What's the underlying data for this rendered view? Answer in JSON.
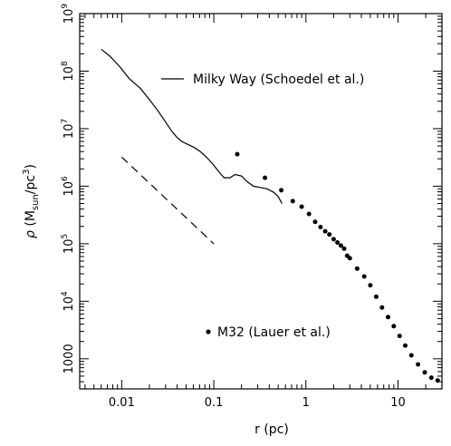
{
  "chart_data": {
    "type": "scatter",
    "xscale": "log",
    "yscale": "log",
    "xlim": [
      0.0035,
      30
    ],
    "ylim": [
      300,
      1000000000
    ],
    "xlabel": "r (pc)",
    "ylabel": {
      "rho": "ρ",
      "open": " (M",
      "sub": "sun",
      "mid": "/pc",
      "sup": "3",
      "close": ")"
    },
    "x_tick_labels": [
      "0.01",
      "0.1",
      "1",
      "10"
    ],
    "y_tick_labels": [
      {
        "value": 1000,
        "label": "1000"
      },
      {
        "value": 10000,
        "base": "10",
        "exp": "4"
      },
      {
        "value": 100000,
        "base": "10",
        "exp": "5"
      },
      {
        "value": 1000000,
        "base": "10",
        "exp": "6"
      },
      {
        "value": 10000000,
        "base": "10",
        "exp": "7"
      },
      {
        "value": 100000000,
        "base": "10",
        "exp": "8"
      },
      {
        "value": 1000000000,
        "base": "10",
        "exp": "9"
      }
    ],
    "legend_placement": "upper-right / lower-center",
    "series": [
      {
        "name": "Milky Way (Schoedel et al.)",
        "kind": "line",
        "x": [
          0.006,
          0.0075,
          0.0095,
          0.012,
          0.016,
          0.02,
          0.025,
          0.03,
          0.035,
          0.04,
          0.045,
          0.05,
          0.06,
          0.07,
          0.08,
          0.09,
          0.1,
          0.11,
          0.12,
          0.13,
          0.15,
          0.17,
          0.2,
          0.23,
          0.27,
          0.32,
          0.38,
          0.45,
          0.5,
          0.55
        ],
        "y": [
          240000000,
          180000000,
          120000000,
          75000000,
          50000000,
          32000000,
          20000000,
          13000000,
          9000000,
          7000000,
          6000000,
          5500000,
          4800000,
          4100000,
          3400000,
          2800000,
          2300000,
          1900000,
          1600000,
          1400000,
          1400000,
          1600000,
          1500000,
          1200000,
          1000000,
          950000,
          900000,
          780000,
          660000,
          500000
        ]
      },
      {
        "name": "M32 (Lauer et al.)",
        "kind": "points",
        "x": [
          0.18,
          0.36,
          0.54,
          0.72,
          0.9,
          1.08,
          1.26,
          1.44,
          1.62,
          1.8,
          2.0,
          2.2,
          2.4,
          2.6,
          2.8,
          3.0,
          3.6,
          4.3,
          5.0,
          5.8,
          6.7,
          7.8,
          9.0,
          10.4,
          12.0,
          14.0,
          16.5,
          19.5,
          23.0,
          27.0
        ],
        "y": [
          3600000,
          1400000,
          850000,
          550000,
          440000,
          330000,
          240000,
          195000,
          165000,
          145000,
          120000,
          105000,
          93000,
          82000,
          62000,
          56000,
          37000,
          27000,
          19000,
          12000,
          7800,
          5300,
          3700,
          2500,
          1700,
          1150,
          800,
          580,
          470,
          420
        ]
      },
      {
        "name": "",
        "kind": "dashed",
        "x": [
          0.01,
          0.1
        ],
        "y": [
          3200000,
          100000
        ]
      }
    ],
    "legend": [
      {
        "label": "Milky Way (Schoedel et al.)",
        "marker": "line"
      },
      {
        "label": "M32 (Lauer et al.)",
        "marker": "dot"
      }
    ]
  }
}
